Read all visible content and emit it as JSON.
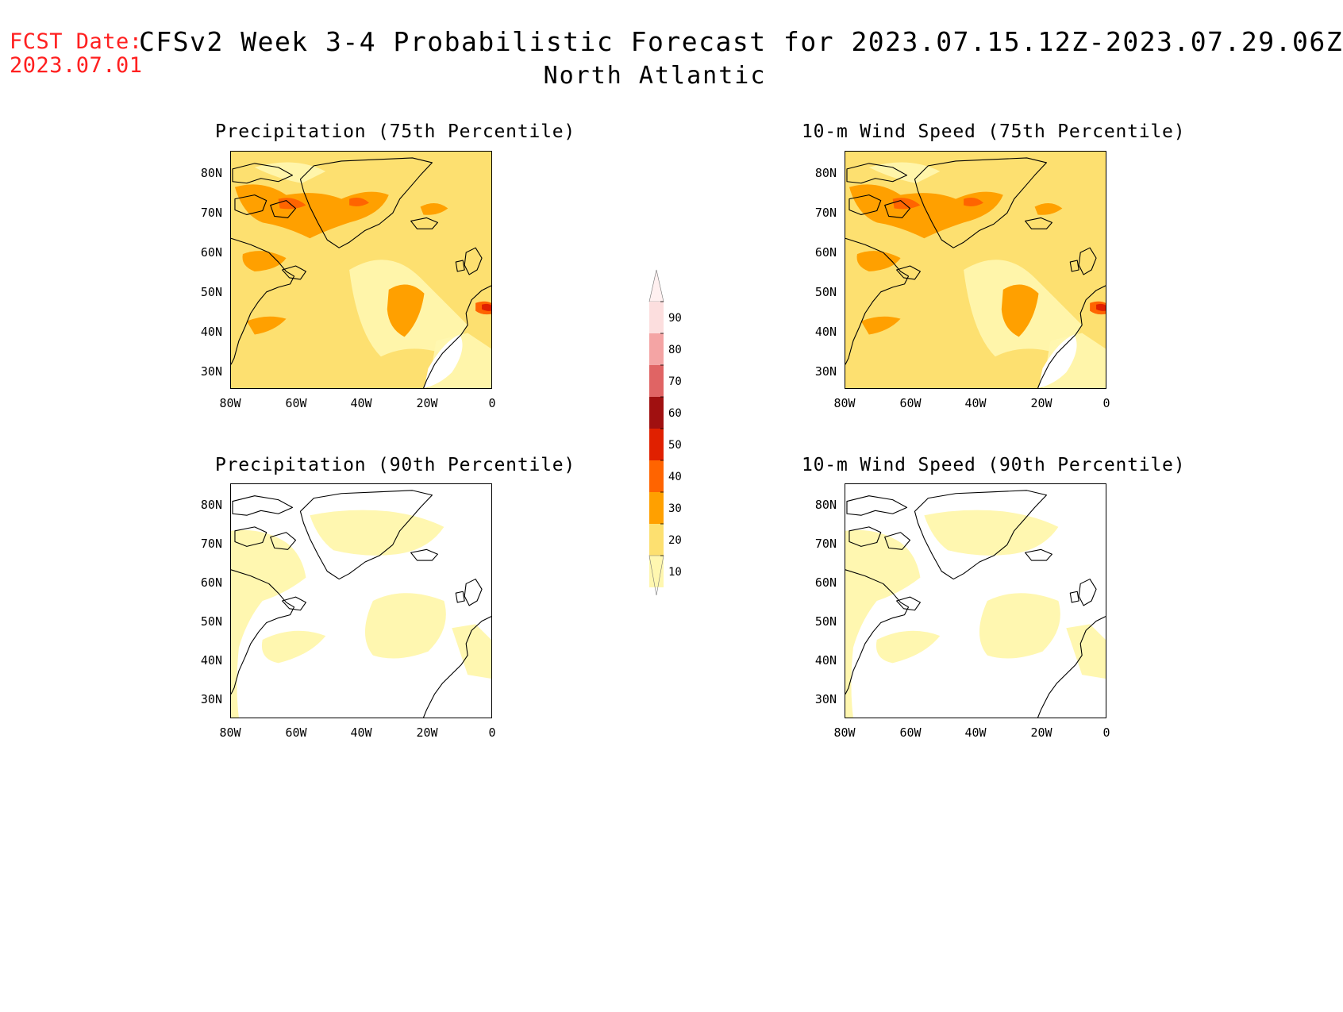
{
  "header": {
    "fcst_label": "FCST Date:",
    "fcst_date": "2023.07.01",
    "title": "CFSv2 Week 3-4 Probabilistic Forecast for 2023.07.15.12Z-2023.07.29.06Z",
    "region": "North Atlantic"
  },
  "panels": [
    {
      "title": "Precipitation (75th Percentile)",
      "intensity": "high"
    },
    {
      "title": "10-m Wind Speed (75th Percentile)",
      "intensity": "high"
    },
    {
      "title": "Precipitation (90th Percentile)",
      "intensity": "low"
    },
    {
      "title": "10-m Wind Speed (90th Percentile)",
      "intensity": "low"
    }
  ],
  "axes": {
    "lat_labels": [
      "80N",
      "70N",
      "60N",
      "50N",
      "40N",
      "30N"
    ],
    "lon_labels": [
      "80W",
      "60W",
      "40W",
      "20W",
      "0"
    ]
  },
  "colorbar": {
    "levels": [
      "90",
      "80",
      "70",
      "60",
      "50",
      "40",
      "30",
      "20",
      "10"
    ],
    "colors": [
      "#fcdede",
      "#f4a4a4",
      "#e06464",
      "#a01010",
      "#e02000",
      "#ff6400",
      "#ffa000",
      "#fde070",
      "#fff7b0"
    ]
  }
}
